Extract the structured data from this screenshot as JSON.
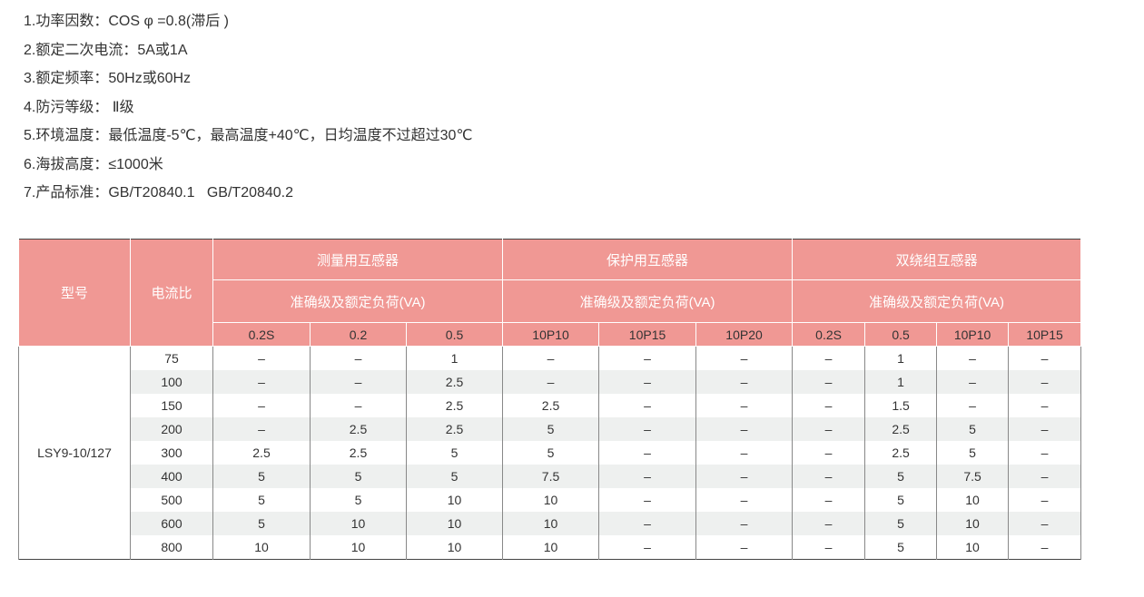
{
  "specs": [
    "1.功率因数：COS φ =0.8(滞后 )",
    "2.额定二次电流：5A或1A",
    "3.额定频率：50Hz或60Hz",
    "4.防污等级： Ⅱ级",
    "5.环境温度：最低温度-5℃，最高温度+40℃，日均温度不过超过30℃",
    "6.海拔高度：≤1000米",
    "7.产品标准：GB/T20840.1   GB/T20840.2"
  ],
  "table": {
    "header_color": "#f09894",
    "model_header": "型号",
    "ratio_header": "电流比",
    "groups": [
      {
        "title": "测量用互感器",
        "subtitle": "准确级及额定负荷(VA)",
        "classes": [
          "0.2S",
          "0.2",
          "0.5"
        ]
      },
      {
        "title": "保护用互感器",
        "subtitle": "准确级及额定负荷(VA)",
        "classes": [
          "10P10",
          "10P15",
          "10P20"
        ]
      },
      {
        "title": "双绕组互感器",
        "subtitle": "准确级及额定负荷(VA)",
        "classes": [
          "0.2S",
          "0.5",
          "10P10",
          "10P15"
        ]
      }
    ],
    "model": "LSY9-10/127",
    "rows": [
      {
        "ratio": "75",
        "values": [
          "–",
          "–",
          "1",
          "–",
          "–",
          "–",
          "–",
          "1",
          "–",
          "–"
        ]
      },
      {
        "ratio": "100",
        "values": [
          "–",
          "–",
          "2.5",
          "–",
          "–",
          "–",
          "–",
          "1",
          "–",
          "–"
        ]
      },
      {
        "ratio": "150",
        "values": [
          "–",
          "–",
          "2.5",
          "2.5",
          "–",
          "–",
          "–",
          "1.5",
          "–",
          "–"
        ]
      },
      {
        "ratio": "200",
        "values": [
          "–",
          "2.5",
          "2.5",
          "5",
          "–",
          "–",
          "–",
          "2.5",
          "5",
          "–"
        ]
      },
      {
        "ratio": "300",
        "values": [
          "2.5",
          "2.5",
          "5",
          "5",
          "–",
          "–",
          "–",
          "2.5",
          "5",
          "–"
        ]
      },
      {
        "ratio": "400",
        "values": [
          "5",
          "5",
          "5",
          "7.5",
          "–",
          "–",
          "–",
          "5",
          "7.5",
          "–"
        ]
      },
      {
        "ratio": "500",
        "values": [
          "5",
          "5",
          "10",
          "10",
          "–",
          "–",
          "–",
          "5",
          "10",
          "–"
        ]
      },
      {
        "ratio": "600",
        "values": [
          "5",
          "10",
          "10",
          "10",
          "–",
          "–",
          "–",
          "5",
          "10",
          "–"
        ]
      },
      {
        "ratio": "800",
        "values": [
          "10",
          "10",
          "10",
          "10",
          "–",
          "–",
          "–",
          "5",
          "10",
          "–"
        ]
      }
    ]
  }
}
